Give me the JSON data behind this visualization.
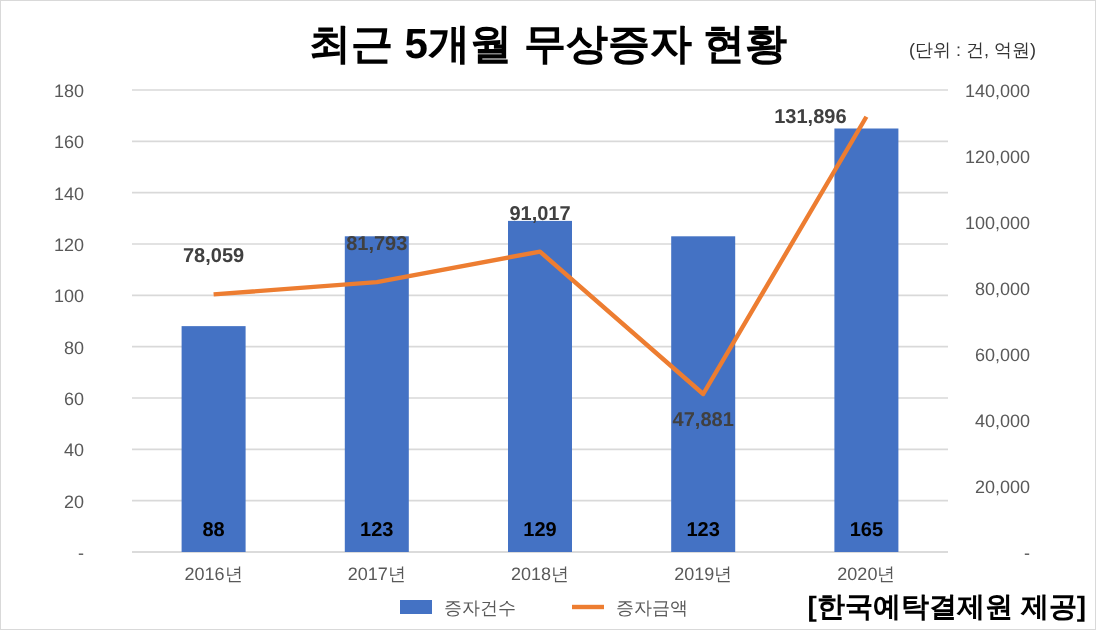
{
  "chart_data": {
    "type": "bar",
    "title": "최근 5개월 무상증자 현황",
    "subtitle": "(단위 : 건, 억원)",
    "categories": [
      "2016년",
      "2017년",
      "2018년",
      "2019년",
      "2020년"
    ],
    "series": [
      {
        "name": "증자건수",
        "color": "#4472c4",
        "values": [
          88,
          123,
          129,
          123,
          165
        ]
      },
      {
        "name": "증자금액",
        "type": "line",
        "axis": "y2",
        "color": "#ed7d31",
        "values": [
          78059,
          81793,
          91017,
          47881,
          131896
        ],
        "value_labels": [
          "78,059",
          "81,793",
          "91,017",
          "47,881",
          "131,896"
        ]
      }
    ],
    "ylim": [
      0,
      180
    ],
    "yticks": [
      {
        "value": 0,
        "label": "-"
      },
      20,
      40,
      60,
      80,
      100,
      120,
      140,
      160,
      180
    ],
    "y2lim": [
      0,
      140000
    ],
    "y2ticks": [
      {
        "value": 0,
        "label": "-"
      },
      {
        "value": 20000,
        "label": "20,000"
      },
      {
        "value": 40000,
        "label": "40,000"
      },
      {
        "value": 60000,
        "label": "60,000"
      },
      {
        "value": 80000,
        "label": "80,000"
      },
      {
        "value": 100000,
        "label": "100,000"
      },
      {
        "value": 120000,
        "label": "120,000"
      },
      {
        "value": 140000,
        "label": "140,000"
      }
    ],
    "data_labels": true,
    "grid": "y",
    "legend": "bottom",
    "annotations": [
      "[한국예탁결제원 제공]"
    ]
  }
}
